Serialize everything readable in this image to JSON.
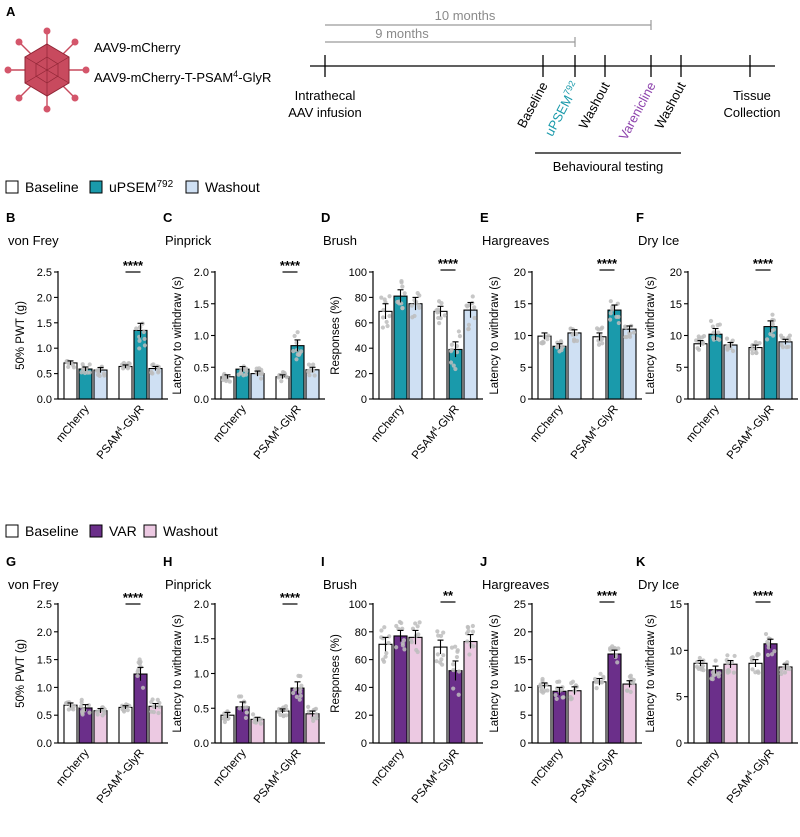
{
  "panel_a": {
    "letter": "A",
    "vector1": "AAV9-mCherry",
    "vector2_prefix": "AAV9-mCherry-T-PSAM",
    "vector2_sup": "4",
    "vector2_suffix": "-GlyR",
    "span_10": "10 months",
    "span_9": "9 months",
    "infusion_line1": "Intrathecal",
    "infusion_line2": "AAV infusion",
    "baseline": "Baseline",
    "upsem_prefix": "uPSEM",
    "upsem_sup": "792",
    "washout1": "Washout",
    "varenicline": "Varenicline",
    "washout2": "Washout",
    "tissue_line1": "Tissue",
    "tissue_line2": "Collection",
    "behav_label": "Behavioural testing"
  },
  "legends": {
    "top": [
      {
        "name": "Baseline",
        "color": "#ffffff"
      },
      {
        "name": "uPSEM",
        "sup": "792",
        "color": "#1a9aab"
      },
      {
        "name": "Washout",
        "color": "#cfe0f3"
      }
    ],
    "bottom": [
      {
        "name": "Baseline",
        "color": "#ffffff"
      },
      {
        "name": "VAR",
        "color": "#6b2f8a"
      },
      {
        "name": "Washout",
        "color": "#ecc9e2"
      }
    ]
  },
  "group_labels": {
    "g1": "mCherry",
    "g2_prefix": "PSAM",
    "g2_sup": "4",
    "g2_suffix": "-GlyR"
  },
  "colors": {
    "upsem": "#1a9aab",
    "washout_top": "#cfe0f3",
    "var": "#6b2f8a",
    "washout_bottom": "#ecc9e2",
    "timeline_gray": "#9a9a9a",
    "upsem_text": "#1a9aab",
    "varenicline_text": "#8e44ad"
  },
  "chart_data": [
    {
      "letter": "B",
      "type": "bar",
      "title": "von Frey",
      "ylabel": "50% PWT (g)",
      "ylim": [
        0,
        2.5
      ],
      "yticks": [
        0,
        0.5,
        1.0,
        1.5,
        2.0,
        2.5
      ],
      "ytick_labels": [
        "0.0",
        "0.5",
        "1.0",
        "1.5",
        "2.0",
        "2.5"
      ],
      "categories": [
        "mCherry",
        "PSAM4-GlyR"
      ],
      "series": [
        {
          "name": "Baseline",
          "values": [
            0.71,
            0.64
          ],
          "sem": [
            0.04,
            0.03
          ]
        },
        {
          "name": "uPSEM792",
          "values": [
            0.59,
            1.35
          ],
          "sem": [
            0.04,
            0.14
          ]
        },
        {
          "name": "Washout",
          "values": [
            0.57,
            0.6
          ],
          "sem": [
            0.05,
            0.04
          ]
        }
      ],
      "significance": "****"
    },
    {
      "letter": "C",
      "type": "bar",
      "title": "Pinprick",
      "ylabel": "Latency to withdraw (s)",
      "ylim": [
        0,
        2.0
      ],
      "yticks": [
        0,
        0.5,
        1.0,
        1.5,
        2.0
      ],
      "ytick_labels": [
        "0.0",
        "0.5",
        "1.0",
        "1.5",
        "2.0"
      ],
      "categories": [
        "mCherry",
        "PSAM4-GlyR"
      ],
      "series": [
        {
          "name": "Baseline",
          "values": [
            0.35,
            0.35
          ],
          "sem": [
            0.03,
            0.03
          ]
        },
        {
          "name": "uPSEM792",
          "values": [
            0.47,
            0.84
          ],
          "sem": [
            0.04,
            0.09
          ]
        },
        {
          "name": "Washout",
          "values": [
            0.4,
            0.46
          ],
          "sem": [
            0.04,
            0.04
          ]
        }
      ],
      "significance": "****"
    },
    {
      "letter": "D",
      "type": "bar",
      "title": "Brush",
      "ylabel": "Responses (%)",
      "ylim": [
        0,
        100
      ],
      "yticks": [
        0,
        20,
        40,
        60,
        80,
        100
      ],
      "ytick_labels": [
        "0",
        "20",
        "40",
        "60",
        "80",
        "100"
      ],
      "categories": [
        "mCherry",
        "PSAM4-GlyR"
      ],
      "series": [
        {
          "name": "Baseline",
          "values": [
            69,
            69
          ],
          "sem": [
            6,
            4
          ]
        },
        {
          "name": "uPSEM792",
          "values": [
            81,
            39
          ],
          "sem": [
            5,
            6
          ]
        },
        {
          "name": "Washout",
          "values": [
            75,
            70
          ],
          "sem": [
            5,
            6
          ]
        }
      ],
      "significance": "****"
    },
    {
      "letter": "E",
      "type": "bar",
      "title": "Hargreaves",
      "ylabel": "Latency to withdraw (s)",
      "ylim": [
        0,
        20
      ],
      "yticks": [
        0,
        5,
        10,
        15,
        20
      ],
      "ytick_labels": [
        "0",
        "5",
        "10",
        "15",
        "20"
      ],
      "categories": [
        "mCherry",
        "PSAM4-GlyR"
      ],
      "series": [
        {
          "name": "Baseline",
          "values": [
            9.9,
            9.8
          ],
          "sem": [
            0.5,
            0.6
          ]
        },
        {
          "name": "uPSEM792",
          "values": [
            8.3,
            14.0
          ],
          "sem": [
            0.4,
            0.8
          ]
        },
        {
          "name": "Washout",
          "values": [
            10.4,
            11.0
          ],
          "sem": [
            0.5,
            0.5
          ]
        }
      ],
      "significance": "****"
    },
    {
      "letter": "F",
      "type": "bar",
      "title": "Dry Ice",
      "ylabel": "Latency to withdraw (s)",
      "ylim": [
        0,
        20
      ],
      "yticks": [
        0,
        5,
        10,
        15,
        20
      ],
      "ytick_labels": [
        "0",
        "5",
        "10",
        "15",
        "20"
      ],
      "categories": [
        "mCherry",
        "PSAM4-GlyR"
      ],
      "series": [
        {
          "name": "Baseline",
          "values": [
            8.7,
            8.1
          ],
          "sem": [
            0.5,
            0.4
          ]
        },
        {
          "name": "uPSEM792",
          "values": [
            10.2,
            11.4
          ],
          "sem": [
            0.9,
            0.9
          ]
        },
        {
          "name": "Washout",
          "values": [
            8.5,
            9.0
          ],
          "sem": [
            0.4,
            0.4
          ]
        }
      ],
      "significance": "****"
    },
    {
      "letter": "G",
      "type": "bar",
      "title": "von Frey",
      "ylabel": "50% PWT (g)",
      "ylim": [
        0,
        2.5
      ],
      "yticks": [
        0,
        0.5,
        1.0,
        1.5,
        2.0,
        2.5
      ],
      "ytick_labels": [
        "0.0",
        "0.5",
        "1.0",
        "1.5",
        "2.0",
        "2.5"
      ],
      "categories": [
        "mCherry",
        "PSAM4-GlyR"
      ],
      "series": [
        {
          "name": "Baseline",
          "values": [
            0.68,
            0.64
          ],
          "sem": [
            0.04,
            0.03
          ]
        },
        {
          "name": "VAR",
          "values": [
            0.63,
            1.24
          ],
          "sem": [
            0.06,
            0.12
          ]
        },
        {
          "name": "Washout",
          "values": [
            0.58,
            0.66
          ],
          "sem": [
            0.04,
            0.05
          ]
        }
      ],
      "significance": "****"
    },
    {
      "letter": "H",
      "type": "bar",
      "title": "Pinprick",
      "ylabel": "Latency to withdraw (s)",
      "ylim": [
        0,
        2.0
      ],
      "yticks": [
        0,
        0.5,
        1.0,
        1.5,
        2.0
      ],
      "ytick_labels": [
        "0.0",
        "0.5",
        "1.0",
        "1.5",
        "2.0"
      ],
      "categories": [
        "mCherry",
        "PSAM4-GlyR"
      ],
      "series": [
        {
          "name": "Baseline",
          "values": [
            0.4,
            0.46
          ],
          "sem": [
            0.04,
            0.03
          ]
        },
        {
          "name": "VAR",
          "values": [
            0.52,
            0.79
          ],
          "sem": [
            0.07,
            0.09
          ]
        },
        {
          "name": "Washout",
          "values": [
            0.34,
            0.42
          ],
          "sem": [
            0.03,
            0.04
          ]
        }
      ],
      "significance": "****"
    },
    {
      "letter": "I",
      "type": "bar",
      "title": "Brush",
      "ylabel": "Responses (%)",
      "ylim": [
        0,
        100
      ],
      "yticks": [
        0,
        20,
        40,
        60,
        80,
        100
      ],
      "ytick_labels": [
        "0",
        "20",
        "40",
        "60",
        "80",
        "100"
      ],
      "categories": [
        "mCherry",
        "PSAM4-GlyR"
      ],
      "series": [
        {
          "name": "Baseline",
          "values": [
            71,
            69
          ],
          "sem": [
            5,
            5
          ]
        },
        {
          "name": "VAR",
          "values": [
            77,
            52
          ],
          "sem": [
            4,
            7
          ]
        },
        {
          "name": "Washout",
          "values": [
            76,
            73
          ],
          "sem": [
            5,
            5
          ]
        }
      ],
      "significance": "**"
    },
    {
      "letter": "J",
      "type": "bar",
      "title": "Hargreaves",
      "ylabel": "Latency to withdraw (s)",
      "ylim": [
        0,
        25
      ],
      "yticks": [
        0,
        5,
        10,
        15,
        20,
        25
      ],
      "ytick_labels": [
        "0",
        "5",
        "10",
        "15",
        "20",
        "25"
      ],
      "categories": [
        "mCherry",
        "PSAM4-GlyR"
      ],
      "series": [
        {
          "name": "Baseline",
          "values": [
            10.3,
            11.0
          ],
          "sem": [
            0.5,
            0.6
          ]
        },
        {
          "name": "VAR",
          "values": [
            9.3,
            16.0
          ],
          "sem": [
            0.7,
            0.7
          ]
        },
        {
          "name": "Washout",
          "values": [
            9.4,
            10.6
          ],
          "sem": [
            0.7,
            0.6
          ]
        }
      ],
      "significance": "****"
    },
    {
      "letter": "K",
      "type": "bar",
      "title": "Dry Ice",
      "ylabel": "Latency to withdraw (s)",
      "ylim": [
        0,
        15
      ],
      "yticks": [
        0,
        5,
        10,
        15
      ],
      "ytick_labels": [
        "0",
        "5",
        "10",
        "15"
      ],
      "categories": [
        "mCherry",
        "PSAM4-GlyR"
      ],
      "series": [
        {
          "name": "Baseline",
          "values": [
            8.6,
            8.6
          ],
          "sem": [
            0.3,
            0.4
          ]
        },
        {
          "name": "VAR",
          "values": [
            7.9,
            10.7
          ],
          "sem": [
            0.4,
            0.5
          ]
        },
        {
          "name": "Washout",
          "values": [
            8.5,
            8.2
          ],
          "sem": [
            0.4,
            0.3
          ]
        }
      ],
      "significance": "****"
    }
  ]
}
